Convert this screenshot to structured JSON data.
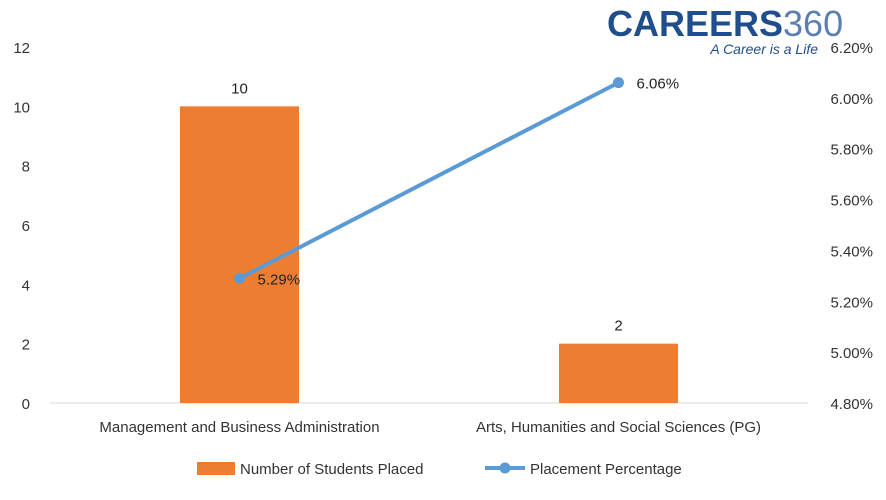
{
  "brand": {
    "name_bold": "CAREERS",
    "name_light": "360",
    "tagline": "A Career is a Life",
    "colors": {
      "bold": "#1f4e8c",
      "light": "#5b7fb5",
      "tagline": "#1f4e8c"
    }
  },
  "chart_data": {
    "type": "bar",
    "categories": [
      "Management and Business Administration",
      "Arts, Humanities and Social Sciences (PG)"
    ],
    "series": [
      {
        "name": "Number of Students Placed",
        "type": "bar",
        "axis": "left",
        "values": [
          10,
          2
        ],
        "labels": [
          "10",
          "2"
        ],
        "color": "#ed7d31"
      },
      {
        "name": "Placement Percentage",
        "type": "line",
        "axis": "right",
        "values": [
          5.29,
          6.06
        ],
        "labels": [
          "5.29%",
          "6.06%"
        ],
        "color": "#5b9bd5"
      }
    ],
    "left_axis": {
      "min": 0,
      "max": 12,
      "ticks": [
        "0",
        "2",
        "4",
        "6",
        "8",
        "10",
        "12"
      ]
    },
    "right_axis": {
      "min": 4.8,
      "max": 6.2,
      "ticks": [
        "4.80%",
        "5.00%",
        "5.20%",
        "5.40%",
        "5.60%",
        "5.80%",
        "6.00%",
        "6.20%"
      ]
    },
    "grid": false,
    "legend_position": "bottom"
  }
}
